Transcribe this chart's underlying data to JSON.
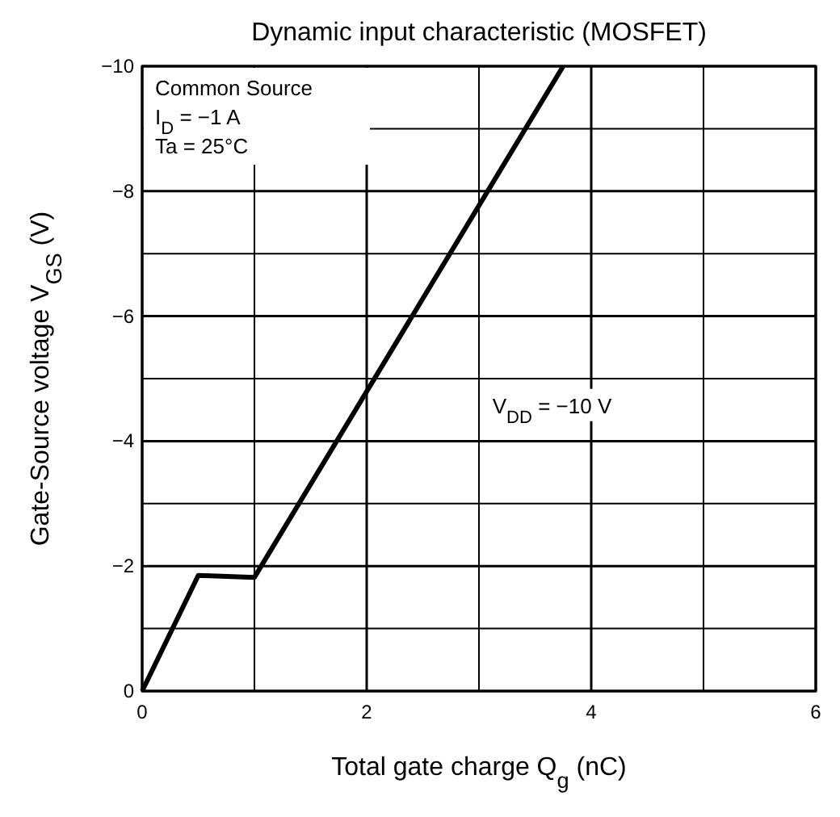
{
  "chart_data": {
    "type": "line",
    "title": "Dynamic input characteristic (MOSFET)",
    "xlabel": "Total gate charge   Q$_{g}$   (nC)",
    "ylabel": "Gate-Source voltage   V$_{GS}$   (V)",
    "x": [
      0,
      0.5,
      1,
      3.75
    ],
    "series": [
      {
        "color": "#000000",
        "values": [
          0,
          -1.85,
          -1.82,
          -10
        ]
      }
    ],
    "xlim": [
      0,
      6
    ],
    "ylim": [
      0,
      -10
    ],
    "xticks": [
      0,
      {
        "value": 1,
        "label": null
      },
      2,
      {
        "value": 3,
        "label": null
      },
      4,
      {
        "value": 5,
        "label": null
      },
      6
    ],
    "yticks": [
      0,
      {
        "value": -1,
        "label": null
      },
      {
        "value": -2,
        "label": "−2"
      },
      {
        "value": -3,
        "label": null
      },
      {
        "value": -4,
        "label": "−4"
      },
      {
        "value": -5,
        "label": null
      },
      {
        "value": -6,
        "label": "−6"
      },
      {
        "value": -7,
        "label": null
      },
      {
        "value": -8,
        "label": "−8"
      },
      {
        "value": -9,
        "label": null
      },
      {
        "value": -10,
        "label": "−10"
      }
    ],
    "grid": true,
    "marker": "none",
    "line_style": "solid",
    "annotations": [
      "Common Source",
      "I$_{D}$ = −1 A",
      "Ta = 25°C",
      "V$_{DD}$ = −10 V"
    ]
  }
}
